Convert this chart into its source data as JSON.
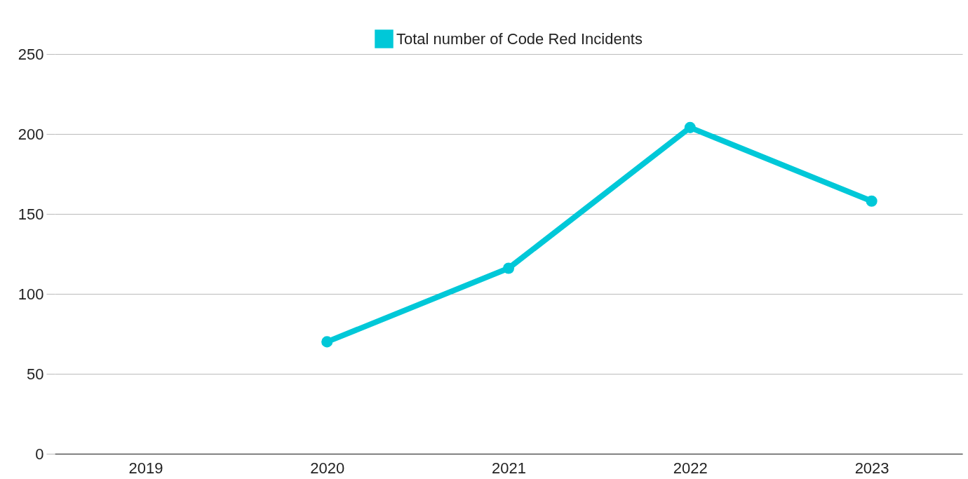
{
  "chart_data": {
    "type": "line",
    "categories": [
      "2019",
      "2020",
      "2021",
      "2022",
      "2023"
    ],
    "series": [
      {
        "name": "Total number of Code Red Incidents",
        "color": "#00c8d8",
        "values": [
          null,
          70,
          116,
          204,
          158
        ]
      }
    ],
    "ylim": [
      0,
      250
    ],
    "yticks": [
      0,
      50,
      100,
      150,
      200,
      250
    ],
    "grid": "y",
    "legend": "top",
    "marker": "circle"
  }
}
